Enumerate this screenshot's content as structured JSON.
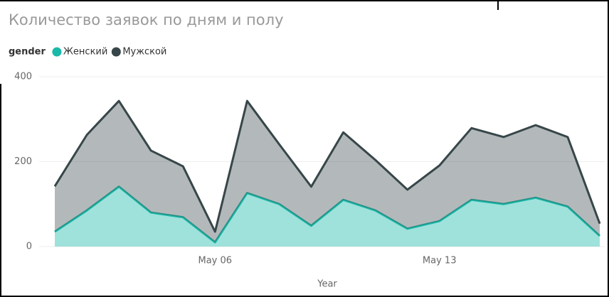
{
  "chart_data": {
    "type": "stacked_area",
    "title": "Количество заявок по дням и полу",
    "legend_title": "gender",
    "x_label": "Year",
    "categories": [
      null,
      null,
      null,
      null,
      null,
      "May 06",
      null,
      null,
      null,
      null,
      null,
      null,
      "May 13",
      null,
      null,
      null,
      null,
      null
    ],
    "series": [
      {
        "name": "Женский",
        "color": "#1ab9a9",
        "values": [
          35,
          85,
          141,
          80,
          69,
          10,
          126,
          100,
          49,
          110,
          85,
          42,
          60,
          110,
          100,
          115,
          94,
          25
        ]
      },
      {
        "name": "Мужской",
        "color": "#374649",
        "values": [
          107,
          178,
          202,
          146,
          120,
          25,
          217,
          141,
          92,
          159,
          119,
          92,
          131,
          169,
          158,
          171,
          164,
          29
        ]
      }
    ],
    "ylim": [
      0,
      400
    ],
    "yticks": [
      0,
      200,
      400
    ],
    "grid": true,
    "legend": "top-left"
  }
}
